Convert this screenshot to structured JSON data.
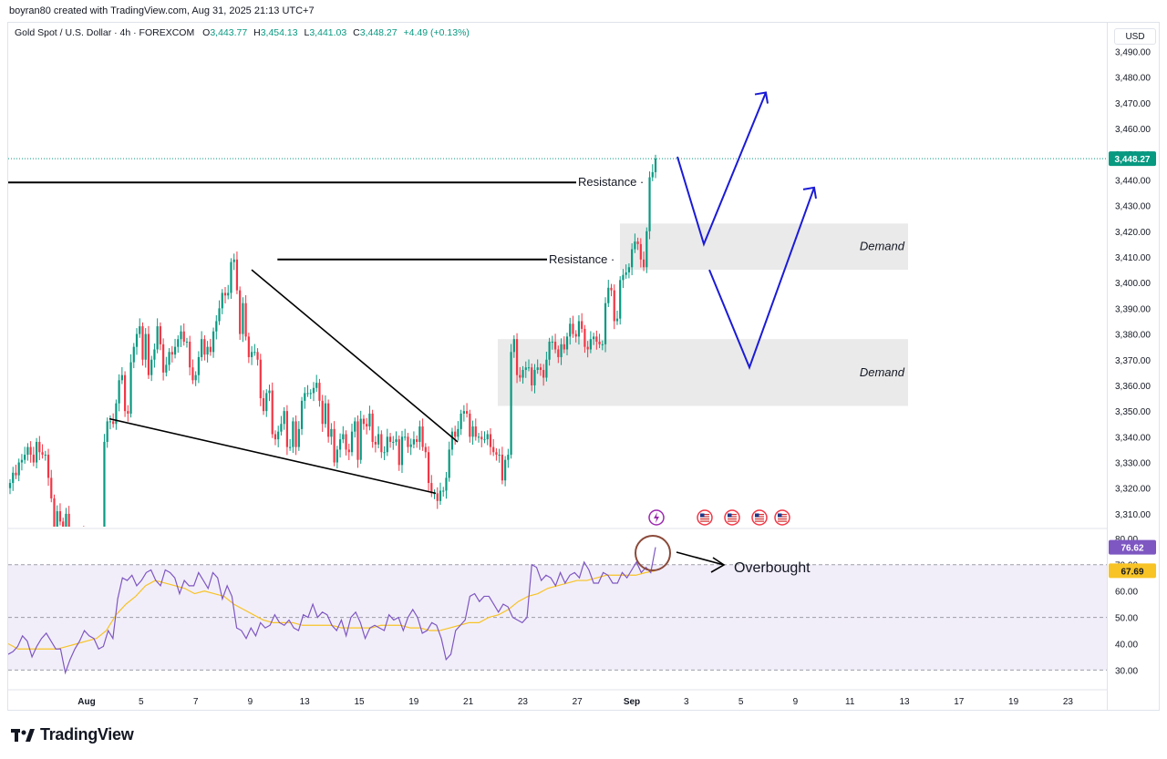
{
  "header": {
    "created_by": "boyran80 created with TradingView.com, Aug 31, 2025 21:13 UTC+7"
  },
  "symbol": {
    "name": "Gold Spot / U.S. Dollar · 4h · FOREXCOM",
    "o_label": "O",
    "o_value": "3,443.77",
    "h_label": "H",
    "h_value": "3,454.13",
    "l_label": "L",
    "l_value": "3,441.03",
    "c_label": "C",
    "c_value": "3,448.27",
    "change": "+4.49 (+0.13%)"
  },
  "currency": "USD",
  "branding": {
    "name": "TradingView"
  },
  "colors": {
    "up": "#089981",
    "down": "#f23645",
    "projection": "#1b1bd6",
    "rsi_line": "#7e57c2",
    "rsi_ma": "#f7c325",
    "zone_fill": "#e6e6e6",
    "price_tag": "#089981"
  },
  "chart_data": [
    {
      "type": "candlestick",
      "title": "Gold Spot / U.S. Dollar · 4h · FOREXCOM",
      "x_ticks": [
        "Aug",
        "5",
        "7",
        "9",
        "13",
        "15",
        "19",
        "21",
        "23",
        "27",
        "Sep",
        "3",
        "5",
        "9",
        "11",
        "13",
        "17",
        "19",
        "23"
      ],
      "y_ticks": [
        "3,490.00",
        "3,480.00",
        "3,470.00",
        "3,460.00",
        "3,450.00",
        "3,440.00",
        "3,430.00",
        "3,420.00",
        "3,410.00",
        "3,400.00",
        "3,390.00",
        "3,380.00",
        "3,370.00",
        "3,360.00",
        "3,350.00",
        "3,340.00",
        "3,330.00",
        "3,320.00",
        "3,310.00"
      ],
      "ylim": [
        3305,
        3493
      ],
      "last_price": "3,448.27",
      "last_close": 3448.27,
      "grid": false,
      "closes": [
        3322,
        3326,
        3325,
        3330,
        3331,
        3333,
        3336,
        3333,
        3330,
        3338,
        3334,
        3333,
        3333,
        3324,
        3316,
        3305,
        3311,
        3307,
        3305,
        3310,
        3299,
        3300,
        3299,
        3300,
        3303,
        3301,
        3298,
        3300,
        3301,
        3298,
        3297,
        3301,
        3338,
        3346,
        3346,
        3345,
        3353,
        3362,
        3364,
        3350,
        3349,
        3369,
        3375,
        3380,
        3383,
        3370,
        3380,
        3364,
        3370,
        3374,
        3383,
        3376,
        3365,
        3368,
        3373,
        3372,
        3375,
        3378,
        3381,
        3377,
        3377,
        3367,
        3362,
        3364,
        3371,
        3378,
        3372,
        3375,
        3373,
        3381,
        3385,
        3390,
        3396,
        3395,
        3396,
        3408,
        3409,
        3397,
        3380,
        3392,
        3379,
        3371,
        3373,
        3373,
        3370,
        3355,
        3350,
        3357,
        3358,
        3341,
        3339,
        3342,
        3345,
        3350,
        3336,
        3336,
        3346,
        3336,
        3343,
        3354,
        3357,
        3357,
        3357,
        3359,
        3361,
        3354,
        3345,
        3353,
        3340,
        3343,
        3330,
        3335,
        3339,
        3341,
        3335,
        3334,
        3342,
        3346,
        3331,
        3347,
        3345,
        3344,
        3349,
        3338,
        3337,
        3341,
        3334,
        3334,
        3340,
        3338,
        3338,
        3339,
        3329,
        3340,
        3340,
        3336,
        3337,
        3339,
        3338,
        3344,
        3336,
        3334,
        3322,
        3318,
        3318,
        3315,
        3319,
        3319,
        3324,
        3335,
        3342,
        3340,
        3343,
        3349,
        3350,
        3349,
        3340,
        3344,
        3340,
        3340,
        3339,
        3339,
        3341,
        3336,
        3334,
        3333,
        3333,
        3323,
        3331,
        3333,
        3373,
        3378,
        3364,
        3363,
        3366,
        3367,
        3367,
        3360,
        3366,
        3367,
        3366,
        3363,
        3370,
        3377,
        3377,
        3374,
        3371,
        3376,
        3374,
        3379,
        3384,
        3380,
        3379,
        3385,
        3382,
        3375,
        3374,
        3378,
        3379,
        3377,
        3376,
        3376,
        3392,
        3398,
        3397,
        3385,
        3386,
        3401,
        3403,
        3404,
        3406,
        3413,
        3416,
        3415,
        3409,
        3406,
        3420,
        3441,
        3443,
        3448.27
      ],
      "trendlines": [
        {
          "label": "Resistance",
          "from": [
            "Jul 29",
            3439
          ],
          "to": [
            "Aug 29",
            3439
          ]
        },
        {
          "label": "Resistance",
          "from": [
            "Aug 8",
            3409
          ],
          "to": [
            "Aug 29",
            3409
          ]
        }
      ],
      "wedge": {
        "upper": [
          [
            "Aug 8",
            3405
          ],
          [
            "Aug 20",
            3338
          ]
        ],
        "lower": [
          [
            "Aug 1",
            3347
          ],
          [
            "Aug 20",
            3318
          ]
        ]
      },
      "zones": [
        {
          "label": "Demand",
          "from": 3405,
          "to": 3423
        },
        {
          "label": "Demand",
          "from": 3352,
          "to": 3378
        }
      ],
      "projection_paths": [
        [
          [
            0,
            3449
          ],
          [
            1,
            3415
          ],
          [
            2,
            3474
          ]
        ],
        [
          [
            0,
            3405
          ],
          [
            1,
            3367
          ],
          [
            2,
            3437
          ]
        ]
      ],
      "event_icons": [
        "lightning-icon",
        "us-flag-icon",
        "us-flag-icon",
        "us-flag-icon",
        "us-flag-icon"
      ]
    },
    {
      "type": "line",
      "title": "RSI",
      "y_ticks": [
        "80.00",
        "70.00",
        "60.00",
        "50.00",
        "40.00",
        "30.00"
      ],
      "ylim": [
        26,
        82
      ],
      "overbought_level": 70,
      "oversold_level": 30,
      "middle_level": 50,
      "rsi_value": "76.62",
      "ma_value": "67.69",
      "annotation": "Overbought",
      "series": [
        {
          "values": [
            36,
            37,
            39,
            43,
            41,
            35,
            39,
            42,
            44,
            41,
            38,
            38,
            29,
            34,
            38,
            41,
            45,
            43,
            42,
            38,
            39,
            45,
            42,
            57,
            65,
            64,
            66,
            62,
            64,
            67,
            68,
            64,
            62,
            68,
            67,
            65,
            59,
            64,
            62,
            62,
            67,
            64,
            61,
            67,
            65,
            57,
            62,
            58,
            46,
            45,
            42,
            46,
            43,
            48,
            46,
            47,
            51,
            48,
            47,
            49,
            46,
            45,
            51,
            50,
            55,
            50,
            52,
            51,
            47,
            45,
            49,
            43,
            50,
            52,
            48,
            42,
            46,
            47,
            46,
            45,
            51,
            49,
            50,
            45,
            50,
            53,
            50,
            44,
            45,
            48,
            47,
            42,
            34,
            36,
            45,
            47,
            49,
            58,
            59,
            56,
            58,
            58,
            55,
            52,
            55,
            54,
            50,
            49,
            48,
            50,
            70,
            69,
            64,
            66,
            65,
            62,
            67,
            63,
            66,
            67,
            65,
            71,
            68,
            63,
            63,
            67,
            66,
            63,
            63,
            67,
            65,
            68,
            71,
            67,
            69,
            67,
            76.62
          ]
        },
        {
          "values": [
            40,
            38,
            38,
            38,
            38,
            38,
            39,
            40,
            41,
            42,
            45,
            51,
            55,
            58,
            62,
            64,
            63,
            62,
            61,
            59,
            60,
            59,
            58,
            55,
            53,
            51,
            49,
            48,
            48,
            48,
            47,
            47,
            47,
            47,
            46,
            46,
            46,
            46,
            47,
            47,
            47,
            46,
            46,
            45,
            45,
            46,
            47,
            48,
            48,
            50,
            51,
            53,
            56,
            58,
            59,
            61,
            62,
            63,
            64,
            64,
            65,
            66,
            66,
            66,
            66,
            67,
            67.69
          ]
        }
      ]
    }
  ]
}
